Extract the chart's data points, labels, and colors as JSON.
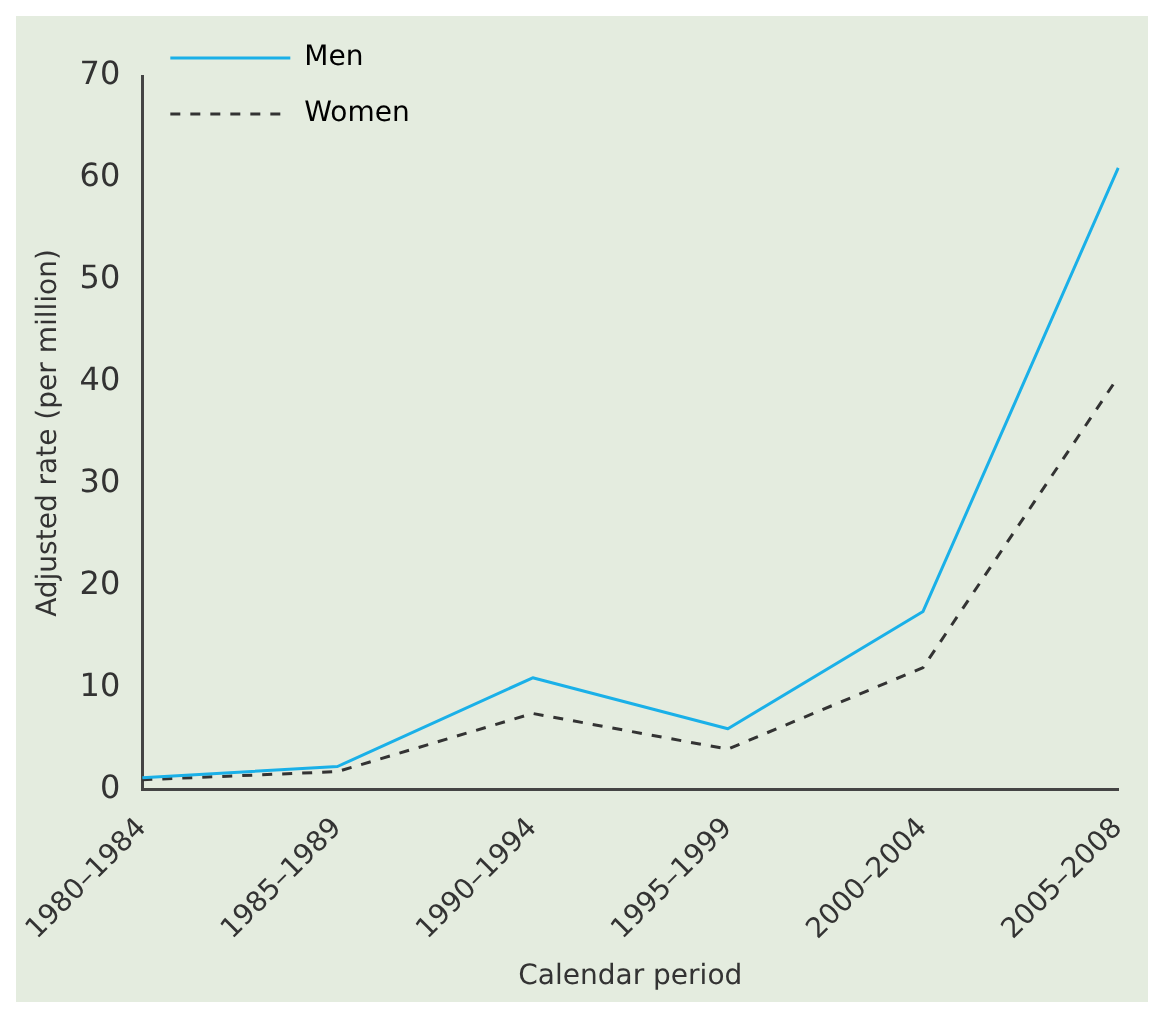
{
  "chart_data": {
    "type": "line",
    "xlabel": "Calendar period",
    "ylabel": "Adjusted rate (per million)",
    "categories": [
      "1980–1984",
      "1985–1989",
      "1990–1994",
      "1995–1999",
      "2000–2004",
      "2005–2008"
    ],
    "series": [
      {
        "name": "Men",
        "color": "#1ab0e8",
        "line_style": "solid",
        "values": [
          1.2,
          2.3,
          11,
          6,
          17.5,
          61
        ]
      },
      {
        "name": "Women",
        "color": "#333333",
        "line_style": "dashed",
        "values": [
          1,
          1.8,
          7.5,
          4,
          12,
          40.5
        ]
      }
    ],
    "ylim": [
      0,
      70
    ],
    "yticks": [
      0,
      10,
      20,
      30,
      40,
      50,
      60,
      70
    ],
    "grid": false,
    "legend": "top left",
    "marker": "none"
  }
}
